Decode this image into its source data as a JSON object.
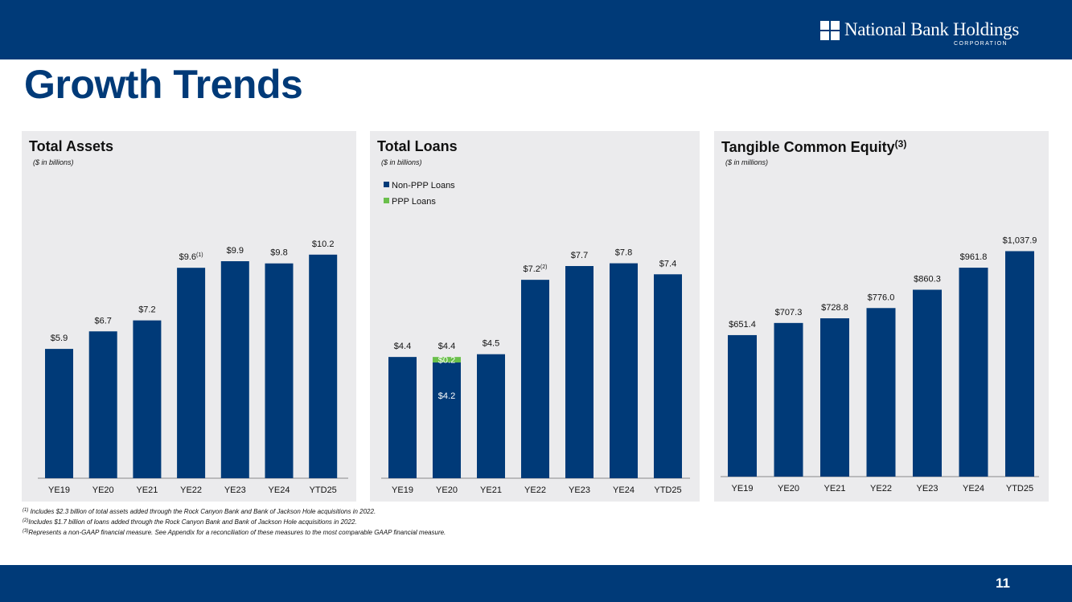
{
  "header": {
    "logo_text": "National Bank Holdings",
    "logo_subtext": "CORPORATION",
    "title": "Growth Trends"
  },
  "colors": {
    "band": "#003a78",
    "bar": "#003a78",
    "ppp": "#6abf4b",
    "panel_bg": "#ebebed"
  },
  "chart_data": [
    {
      "type": "bar",
      "title": "Total Assets",
      "subtitle": "($ in billions)",
      "categories": [
        "YE19",
        "YE20",
        "YE21",
        "YE22",
        "YE23",
        "YE24",
        "YTD25"
      ],
      "values": [
        5.9,
        6.7,
        7.2,
        9.6,
        9.9,
        9.8,
        10.2
      ],
      "labels": [
        "$5.9",
        "$6.7",
        "$7.2",
        "$9.6",
        "$9.9",
        "$9.8",
        "$10.2"
      ],
      "label_notes": [
        "",
        "",
        "",
        "(1)",
        "",
        "",
        ""
      ],
      "ylim": [
        0,
        11.0
      ]
    },
    {
      "type": "bar",
      "title": "Total Loans",
      "subtitle": "($ in billions)",
      "stacked": true,
      "categories": [
        "YE19",
        "YE20",
        "YE21",
        "YE22",
        "YE23",
        "YE24",
        "YTD25"
      ],
      "series": [
        {
          "name": "Non-PPP Loans",
          "values": [
            4.4,
            4.2,
            4.5,
            7.2,
            7.7,
            7.8,
            7.4
          ]
        },
        {
          "name": "PPP Loans",
          "values": [
            0,
            0.2,
            0,
            0,
            0,
            0,
            0
          ]
        }
      ],
      "totals": [
        "$4.4",
        "$4.4",
        "$4.5",
        "$7.2",
        "$7.7",
        "$7.8",
        "$7.4"
      ],
      "label_notes": [
        "",
        "",
        "",
        "(2)",
        "",
        "",
        ""
      ],
      "segment_labels": [
        {
          "category": "YE20",
          "series": "Non-PPP Loans",
          "text": "$4.2"
        },
        {
          "category": "YE20",
          "series": "PPP Loans",
          "text": "$0.2"
        }
      ],
      "legend": [
        "Non-PPP Loans",
        "PPP Loans"
      ],
      "ylim": [
        0,
        8.75
      ]
    },
    {
      "type": "bar",
      "title": "Tangible Common Equity",
      "title_note": "(3)",
      "subtitle": "($ in millions)",
      "categories": [
        "YE19",
        "YE20",
        "YE21",
        "YE22",
        "YE23",
        "YE24",
        "YTD25"
      ],
      "values": [
        651.4,
        707.3,
        728.8,
        776.0,
        860.3,
        961.8,
        1037.9
      ],
      "labels": [
        "$651.4",
        "$707.3",
        "$728.8",
        "$776.0",
        "$860.3",
        "$961.8",
        "$1,037.9"
      ],
      "ylim": [
        0,
        1110
      ]
    }
  ],
  "footnotes": [
    {
      "mark": "(1)",
      "text": " Includes $2.3 billion of total assets added through the Rock Canyon Bank and Bank of Jackson Hole acquisitions in 2022."
    },
    {
      "mark": "(2)",
      "text": "Includes $1.7 billion of loans added through the Rock Canyon Bank and Bank of Jackson Hole acquisitions in 2022."
    },
    {
      "mark": "(3)",
      "text": "Represents a non-GAAP financial measure.  See Appendix for a reconciliation of these measures to the most comparable GAAP financial measure."
    }
  ],
  "page_number": "11"
}
